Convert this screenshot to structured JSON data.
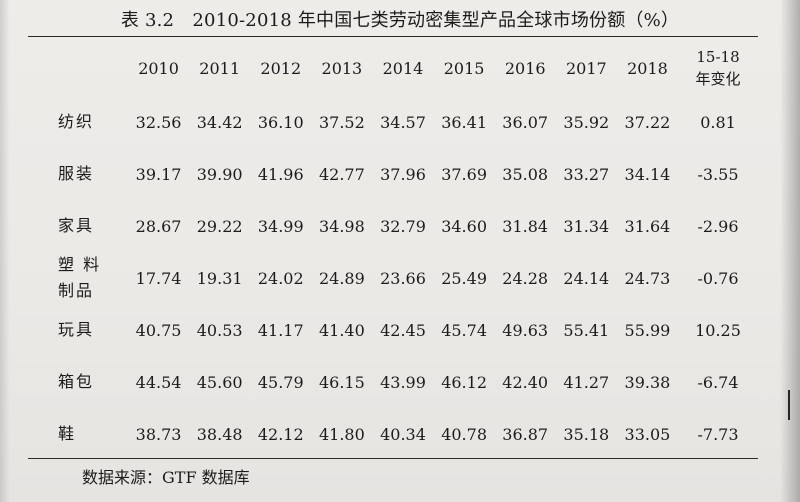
{
  "title": "表 3.2　2010-2018 年中国七类劳动密集型产品全球市场份额（%）",
  "columns": [
    "2010",
    "2011",
    "2012",
    "2013",
    "2014",
    "2015",
    "2016",
    "2017",
    "2018"
  ],
  "change_header": [
    "15-18",
    "年变化"
  ],
  "rows": [
    {
      "label": [
        "纺织"
      ],
      "values": [
        "32.56",
        "34.42",
        "36.10",
        "37.52",
        "34.57",
        "36.41",
        "36.07",
        "35.92",
        "37.22"
      ],
      "change": "0.81"
    },
    {
      "label": [
        "服装"
      ],
      "values": [
        "39.17",
        "39.90",
        "41.96",
        "42.77",
        "37.96",
        "37.69",
        "35.08",
        "33.27",
        "34.14"
      ],
      "change": "-3.55"
    },
    {
      "label": [
        "家具"
      ],
      "values": [
        "28.67",
        "29.22",
        "34.99",
        "34.98",
        "32.79",
        "34.60",
        "31.84",
        "31.34",
        "31.64"
      ],
      "change": "-2.96"
    },
    {
      "label": [
        "塑 料",
        "制品"
      ],
      "values": [
        "17.74",
        "19.31",
        "24.02",
        "24.89",
        "23.66",
        "25.49",
        "24.28",
        "24.14",
        "24.73"
      ],
      "change": "-0.76"
    },
    {
      "label": [
        "玩具"
      ],
      "values": [
        "40.75",
        "40.53",
        "41.17",
        "41.40",
        "42.45",
        "45.74",
        "49.63",
        "55.41",
        "55.99"
      ],
      "change": "10.25"
    },
    {
      "label": [
        "箱包"
      ],
      "values": [
        "44.54",
        "45.60",
        "45.79",
        "46.15",
        "43.99",
        "46.12",
        "42.40",
        "41.27",
        "39.38"
      ],
      "change": "-6.74"
    },
    {
      "label": [
        "鞋"
      ],
      "values": [
        "38.73",
        "38.48",
        "42.12",
        "41.80",
        "40.34",
        "40.78",
        "36.87",
        "35.18",
        "33.05"
      ],
      "change": "-7.73"
    }
  ],
  "source": "数据来源：GTF 数据库"
}
